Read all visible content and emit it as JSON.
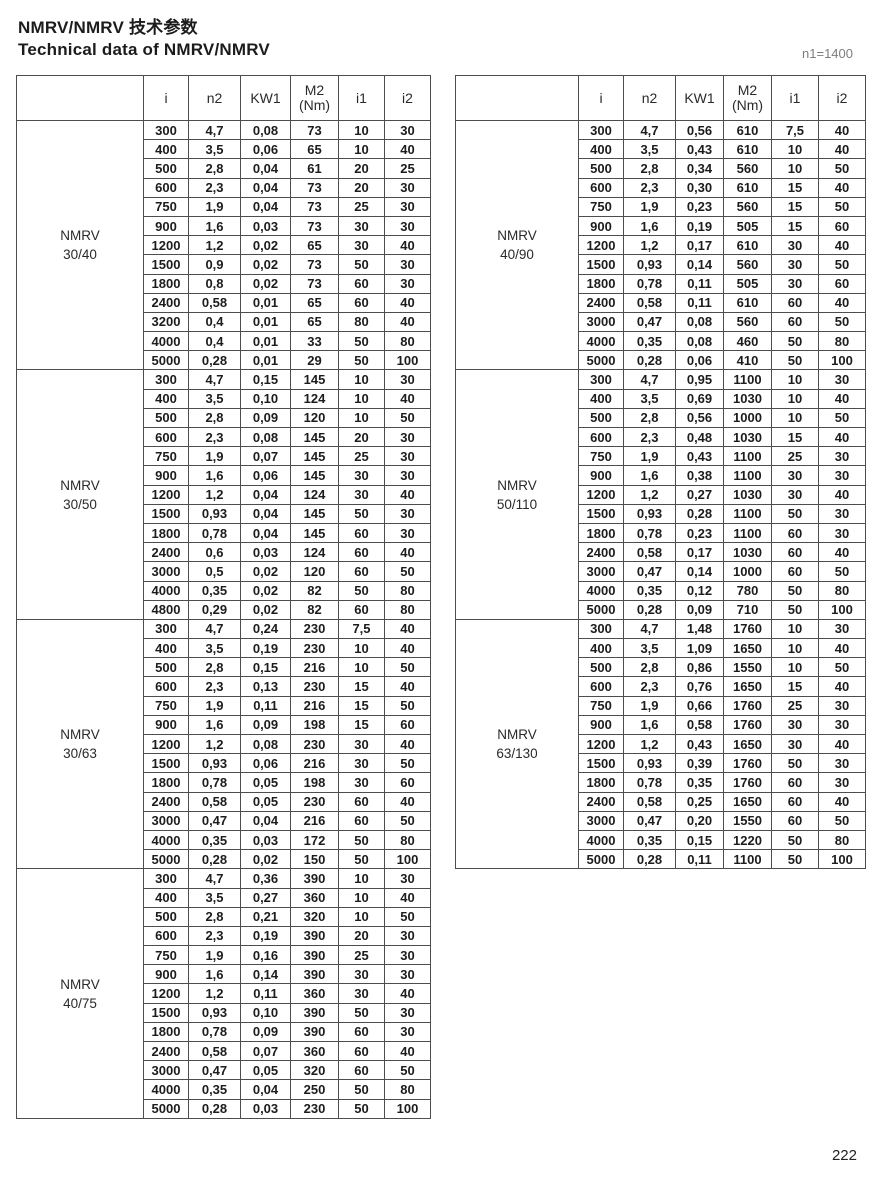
{
  "header": {
    "title_zh": "NMRV/NMRV 技术参数",
    "title_en": "Technical data of NMRV/NMRV",
    "note": "n1=1400"
  },
  "footer": {
    "page_number": "222"
  },
  "columns": [
    {
      "label": ""
    },
    {
      "label": "i"
    },
    {
      "label": "n2"
    },
    {
      "label": "KW1"
    },
    {
      "label": "M2",
      "sub": "(Nm)"
    },
    {
      "label": "i1"
    },
    {
      "label": "i2"
    }
  ],
  "tables": [
    {
      "id": "left",
      "sections": [
        {
          "model": "NMRV",
          "size": "30/40",
          "rows": [
            [
              "300",
              "4,7",
              "0,08",
              "73",
              "10",
              "30"
            ],
            [
              "400",
              "3,5",
              "0,06",
              "65",
              "10",
              "40"
            ],
            [
              "500",
              "2,8",
              "0,04",
              "61",
              "20",
              "25"
            ],
            [
              "600",
              "2,3",
              "0,04",
              "73",
              "20",
              "30"
            ],
            [
              "750",
              "1,9",
              "0,04",
              "73",
              "25",
              "30"
            ],
            [
              "900",
              "1,6",
              "0,03",
              "73",
              "30",
              "30"
            ],
            [
              "1200",
              "1,2",
              "0,02",
              "65",
              "30",
              "40"
            ],
            [
              "1500",
              "0,9",
              "0,02",
              "73",
              "50",
              "30"
            ],
            [
              "1800",
              "0,8",
              "0,02",
              "73",
              "60",
              "30"
            ],
            [
              "2400",
              "0,58",
              "0,01",
              "65",
              "60",
              "40"
            ],
            [
              "3200",
              "0,4",
              "0,01",
              "65",
              "80",
              "40"
            ],
            [
              "4000",
              "0,4",
              "0,01",
              "33",
              "50",
              "80"
            ],
            [
              "5000",
              "0,28",
              "0,01",
              "29",
              "50",
              "100"
            ]
          ]
        },
        {
          "model": "NMRV",
          "size": "30/50",
          "rows": [
            [
              "300",
              "4,7",
              "0,15",
              "145",
              "10",
              "30"
            ],
            [
              "400",
              "3,5",
              "0,10",
              "124",
              "10",
              "40"
            ],
            [
              "500",
              "2,8",
              "0,09",
              "120",
              "10",
              "50"
            ],
            [
              "600",
              "2,3",
              "0,08",
              "145",
              "20",
              "30"
            ],
            [
              "750",
              "1,9",
              "0,07",
              "145",
              "25",
              "30"
            ],
            [
              "900",
              "1,6",
              "0,06",
              "145",
              "30",
              "30"
            ],
            [
              "1200",
              "1,2",
              "0,04",
              "124",
              "30",
              "40"
            ],
            [
              "1500",
              "0,93",
              "0,04",
              "145",
              "50",
              "30"
            ],
            [
              "1800",
              "0,78",
              "0,04",
              "145",
              "60",
              "30"
            ],
            [
              "2400",
              "0,6",
              "0,03",
              "124",
              "60",
              "40"
            ],
            [
              "3000",
              "0,5",
              "0,02",
              "120",
              "60",
              "50"
            ],
            [
              "4000",
              "0,35",
              "0,02",
              "82",
              "50",
              "80"
            ],
            [
              "4800",
              "0,29",
              "0,02",
              "82",
              "60",
              "80"
            ]
          ]
        },
        {
          "model": "NMRV",
          "size": "30/63",
          "rows": [
            [
              "300",
              "4,7",
              "0,24",
              "230",
              "7,5",
              "40"
            ],
            [
              "400",
              "3,5",
              "0,19",
              "230",
              "10",
              "40"
            ],
            [
              "500",
              "2,8",
              "0,15",
              "216",
              "10",
              "50"
            ],
            [
              "600",
              "2,3",
              "0,13",
              "230",
              "15",
              "40"
            ],
            [
              "750",
              "1,9",
              "0,11",
              "216",
              "15",
              "50"
            ],
            [
              "900",
              "1,6",
              "0,09",
              "198",
              "15",
              "60"
            ],
            [
              "1200",
              "1,2",
              "0,08",
              "230",
              "30",
              "40"
            ],
            [
              "1500",
              "0,93",
              "0,06",
              "216",
              "30",
              "50"
            ],
            [
              "1800",
              "0,78",
              "0,05",
              "198",
              "30",
              "60"
            ],
            [
              "2400",
              "0,58",
              "0,05",
              "230",
              "60",
              "40"
            ],
            [
              "3000",
              "0,47",
              "0,04",
              "216",
              "60",
              "50"
            ],
            [
              "4000",
              "0,35",
              "0,03",
              "172",
              "50",
              "80"
            ],
            [
              "5000",
              "0,28",
              "0,02",
              "150",
              "50",
              "100"
            ]
          ]
        },
        {
          "model": "NMRV",
          "size": "40/75",
          "rows": [
            [
              "300",
              "4,7",
              "0,36",
              "390",
              "10",
              "30"
            ],
            [
              "400",
              "3,5",
              "0,27",
              "360",
              "10",
              "40"
            ],
            [
              "500",
              "2,8",
              "0,21",
              "320",
              "10",
              "50"
            ],
            [
              "600",
              "2,3",
              "0,19",
              "390",
              "20",
              "30"
            ],
            [
              "750",
              "1,9",
              "0,16",
              "390",
              "25",
              "30"
            ],
            [
              "900",
              "1,6",
              "0,14",
              "390",
              "30",
              "30"
            ],
            [
              "1200",
              "1,2",
              "0,11",
              "360",
              "30",
              "40"
            ],
            [
              "1500",
              "0,93",
              "0,10",
              "390",
              "50",
              "30"
            ],
            [
              "1800",
              "0,78",
              "0,09",
              "390",
              "60",
              "30"
            ],
            [
              "2400",
              "0,58",
              "0,07",
              "360",
              "60",
              "40"
            ],
            [
              "3000",
              "0,47",
              "0,05",
              "320",
              "60",
              "50"
            ],
            [
              "4000",
              "0,35",
              "0,04",
              "250",
              "50",
              "80"
            ],
            [
              "5000",
              "0,28",
              "0,03",
              "230",
              "50",
              "100"
            ]
          ]
        }
      ]
    },
    {
      "id": "right",
      "sections": [
        {
          "model": "NMRV",
          "size": "40/90",
          "rows": [
            [
              "300",
              "4,7",
              "0,56",
              "610",
              "7,5",
              "40"
            ],
            [
              "400",
              "3,5",
              "0,43",
              "610",
              "10",
              "40"
            ],
            [
              "500",
              "2,8",
              "0,34",
              "560",
              "10",
              "50"
            ],
            [
              "600",
              "2,3",
              "0,30",
              "610",
              "15",
              "40"
            ],
            [
              "750",
              "1,9",
              "0,23",
              "560",
              "15",
              "50"
            ],
            [
              "900",
              "1,6",
              "0,19",
              "505",
              "15",
              "60"
            ],
            [
              "1200",
              "1,2",
              "0,17",
              "610",
              "30",
              "40"
            ],
            [
              "1500",
              "0,93",
              "0,14",
              "560",
              "30",
              "50"
            ],
            [
              "1800",
              "0,78",
              "0,11",
              "505",
              "30",
              "60"
            ],
            [
              "2400",
              "0,58",
              "0,11",
              "610",
              "60",
              "40"
            ],
            [
              "3000",
              "0,47",
              "0,08",
              "560",
              "60",
              "50"
            ],
            [
              "4000",
              "0,35",
              "0,08",
              "460",
              "50",
              "80"
            ],
            [
              "5000",
              "0,28",
              "0,06",
              "410",
              "50",
              "100"
            ]
          ]
        },
        {
          "model": "NMRV",
          "size": "50/110",
          "rows": [
            [
              "300",
              "4,7",
              "0,95",
              "1100",
              "10",
              "30"
            ],
            [
              "400",
              "3,5",
              "0,69",
              "1030",
              "10",
              "40"
            ],
            [
              "500",
              "2,8",
              "0,56",
              "1000",
              "10",
              "50"
            ],
            [
              "600",
              "2,3",
              "0,48",
              "1030",
              "15",
              "40"
            ],
            [
              "750",
              "1,9",
              "0,43",
              "1100",
              "25",
              "30"
            ],
            [
              "900",
              "1,6",
              "0,38",
              "1100",
              "30",
              "30"
            ],
            [
              "1200",
              "1,2",
              "0,27",
              "1030",
              "30",
              "40"
            ],
            [
              "1500",
              "0,93",
              "0,28",
              "1100",
              "50",
              "30"
            ],
            [
              "1800",
              "0,78",
              "0,23",
              "1100",
              "60",
              "30"
            ],
            [
              "2400",
              "0,58",
              "0,17",
              "1030",
              "60",
              "40"
            ],
            [
              "3000",
              "0,47",
              "0,14",
              "1000",
              "60",
              "50"
            ],
            [
              "4000",
              "0,35",
              "0,12",
              "780",
              "50",
              "80"
            ],
            [
              "5000",
              "0,28",
              "0,09",
              "710",
              "50",
              "100"
            ]
          ]
        },
        {
          "model": "NMRV",
          "size": "63/130",
          "rows": [
            [
              "300",
              "4,7",
              "1,48",
              "1760",
              "10",
              "30"
            ],
            [
              "400",
              "3,5",
              "1,09",
              "1650",
              "10",
              "40"
            ],
            [
              "500",
              "2,8",
              "0,86",
              "1550",
              "10",
              "50"
            ],
            [
              "600",
              "2,3",
              "0,76",
              "1650",
              "15",
              "40"
            ],
            [
              "750",
              "1,9",
              "0,66",
              "1760",
              "25",
              "30"
            ],
            [
              "900",
              "1,6",
              "0,58",
              "1760",
              "30",
              "30"
            ],
            [
              "1200",
              "1,2",
              "0,43",
              "1650",
              "30",
              "40"
            ],
            [
              "1500",
              "0,93",
              "0,39",
              "1760",
              "50",
              "30"
            ],
            [
              "1800",
              "0,78",
              "0,35",
              "1760",
              "60",
              "30"
            ],
            [
              "2400",
              "0,58",
              "0,25",
              "1650",
              "60",
              "40"
            ],
            [
              "3000",
              "0,47",
              "0,20",
              "1550",
              "60",
              "50"
            ],
            [
              "4000",
              "0,35",
              "0,15",
              "1220",
              "50",
              "80"
            ],
            [
              "5000",
              "0,28",
              "0,11",
              "1100",
              "50",
              "100"
            ]
          ]
        }
      ]
    }
  ]
}
